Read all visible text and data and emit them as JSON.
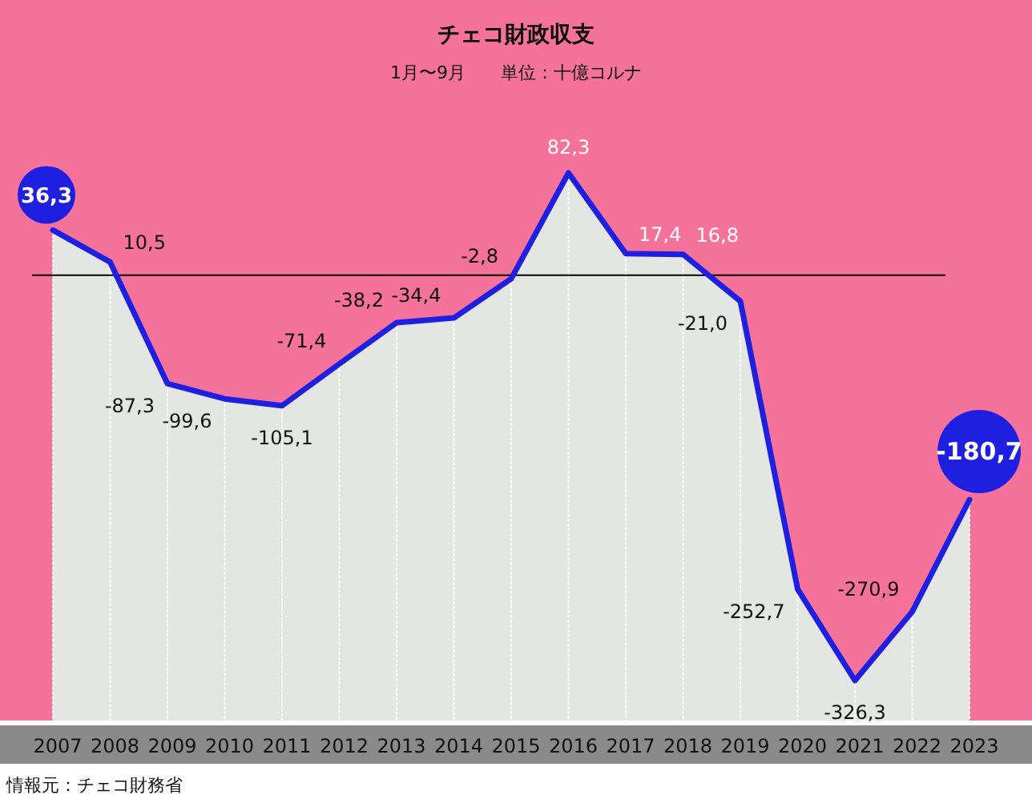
{
  "chart_data": {
    "type": "area",
    "title": "チェコ財政収支",
    "subtitle": "1月〜9月　　単位：十億コルナ",
    "categories": [
      "2007",
      "2008",
      "2009",
      "2010",
      "2011",
      "2012",
      "2013",
      "2014",
      "2015",
      "2016",
      "2017",
      "2018",
      "2019",
      "2020",
      "2021",
      "2022",
      "2023"
    ],
    "series": [
      {
        "color": "#1f1fe0",
        "values": [
          36.3,
          10.5,
          -87.3,
          -99.6,
          -105.1,
          -71.4,
          -38.2,
          -34.4,
          -2.8,
          82.3,
          17.4,
          16.8,
          -21.0,
          -252.7,
          -326.3,
          -270.9,
          -180.7
        ],
        "value_labels": [
          "36,3",
          "10,5",
          "-87,3",
          "-99,6",
          "-105,1",
          "-71,4",
          "-38,2",
          "-34,4",
          "-2,8",
          "82,3",
          "17,4",
          "16,8",
          "-21,0",
          "-252,7",
          "-326,3",
          "-270,9",
          "-180,7"
        ]
      }
    ],
    "ref_lines": [
      {
        "axis": "y",
        "value": 0,
        "color": "#000000"
      }
    ],
    "grid": "x",
    "annotations": [
      "情報元：チェコ財務省"
    ]
  }
}
